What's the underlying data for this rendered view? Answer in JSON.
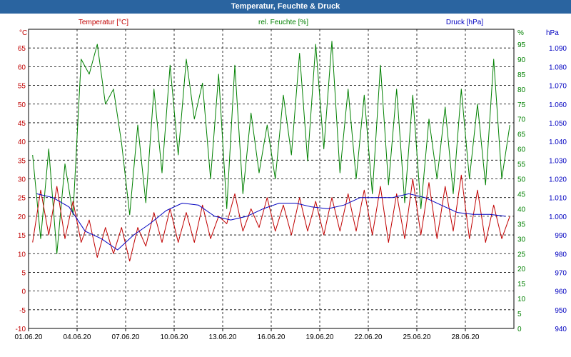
{
  "window": {
    "title": "Temperatur, Feuchte & Druck"
  },
  "colors": {
    "temperature": "#c00000",
    "humidity": "#008000",
    "pressure": "#0000c0",
    "grid": "#000000",
    "title_bar": "#2a64a0"
  },
  "chart_data": {
    "type": "line",
    "title": "Temperatur, Feuchte & Druck",
    "grid": true,
    "x_axis": {
      "start": "2020-06-01",
      "end": "2020-06-30",
      "tick_labels": [
        "01.06.20",
        "04.06.20",
        "07.06.20",
        "10.06.20",
        "13.06.20",
        "16.06.20",
        "19.06.20",
        "22.06.20",
        "25.06.20",
        "28.06.20"
      ]
    },
    "axes": {
      "temperature": {
        "label": "Temperatur [°C]",
        "unit": "°C",
        "ylim": [
          -10,
          70
        ],
        "ticks": [
          70,
          65,
          60,
          55,
          50,
          45,
          40,
          35,
          30,
          25,
          20,
          15,
          10,
          5,
          0,
          -5,
          -10
        ],
        "tick_labels": [
          "",
          "65",
          "60",
          "55",
          "50",
          "45",
          "40",
          "35",
          "30",
          "25",
          "20",
          "15",
          "10",
          "5",
          "0",
          "-5",
          "-10"
        ],
        "unit_label": "°C"
      },
      "humidity": {
        "label": "rel. Feuchte [%]",
        "unit": "%",
        "ylim": [
          0,
          100
        ],
        "ticks": [
          100,
          95,
          90,
          85,
          80,
          75,
          70,
          65,
          60,
          55,
          50,
          45,
          40,
          35,
          30,
          25,
          20,
          15,
          10,
          5,
          0
        ],
        "tick_labels": [
          "",
          "95",
          "90",
          "85",
          "80",
          "75",
          "70",
          "65",
          "60",
          "55",
          "50",
          "45",
          "40",
          "35",
          "30",
          "25",
          "20",
          "15",
          "10",
          "5",
          "0"
        ],
        "unit_label": "%"
      },
      "pressure": {
        "label": "Druck [hPa]",
        "unit": "hPa",
        "ylim": [
          940,
          1100
        ],
        "ticks": [
          1100,
          1090,
          1080,
          1070,
          1060,
          1050,
          1040,
          1030,
          1020,
          1010,
          1000,
          990,
          980,
          970,
          960,
          950,
          940
        ],
        "tick_labels": [
          "",
          "1.090",
          "1.080",
          "1.070",
          "1.060",
          "1.050",
          "1.040",
          "1.030",
          "1.020",
          "1.010",
          "1.000",
          "990",
          "980",
          "970",
          "960",
          "950",
          "940"
        ],
        "unit_label": "hPa"
      }
    },
    "series": [
      {
        "name": "Temperatur [°C]",
        "axis": "temperature",
        "x": [
          "2020-06-01",
          "2020-06-01",
          "2020-06-02",
          "2020-06-02",
          "2020-06-03",
          "2020-06-03",
          "2020-06-04",
          "2020-06-04",
          "2020-06-05",
          "2020-06-05",
          "2020-06-06",
          "2020-06-06",
          "2020-06-07",
          "2020-06-07",
          "2020-06-08",
          "2020-06-08",
          "2020-06-09",
          "2020-06-09",
          "2020-06-10",
          "2020-06-10",
          "2020-06-11",
          "2020-06-11",
          "2020-06-12",
          "2020-06-12",
          "2020-06-13",
          "2020-06-13",
          "2020-06-14",
          "2020-06-14",
          "2020-06-15",
          "2020-06-15",
          "2020-06-16",
          "2020-06-16",
          "2020-06-17",
          "2020-06-17",
          "2020-06-18",
          "2020-06-18",
          "2020-06-19",
          "2020-06-19",
          "2020-06-20",
          "2020-06-20",
          "2020-06-21",
          "2020-06-21",
          "2020-06-22",
          "2020-06-22",
          "2020-06-23",
          "2020-06-23",
          "2020-06-24",
          "2020-06-24",
          "2020-06-25",
          "2020-06-25",
          "2020-06-26",
          "2020-06-26",
          "2020-06-27",
          "2020-06-27",
          "2020-06-28",
          "2020-06-28",
          "2020-06-29",
          "2020-06-29",
          "2020-06-30",
          "2020-06-30"
        ],
        "y": [
          13,
          27,
          15,
          28,
          14,
          24,
          13,
          19,
          9,
          17,
          10,
          17,
          8,
          17,
          12,
          21,
          13,
          22,
          13,
          21,
          13,
          23,
          14,
          20,
          18,
          26,
          16,
          22,
          17,
          25,
          16,
          23,
          15,
          25,
          16,
          24,
          15,
          25,
          16,
          26,
          16,
          27,
          15,
          28,
          13,
          26,
          14,
          30,
          15,
          29,
          14,
          28,
          16,
          31,
          14,
          27,
          13,
          23,
          14,
          20
        ]
      },
      {
        "name": "rel. Feuchte [%]",
        "axis": "humidity",
        "x": [
          "2020-06-01",
          "2020-06-01",
          "2020-06-02",
          "2020-06-02",
          "2020-06-03",
          "2020-06-03",
          "2020-06-04",
          "2020-06-04",
          "2020-06-05",
          "2020-06-05",
          "2020-06-06",
          "2020-06-06",
          "2020-06-07",
          "2020-06-07",
          "2020-06-08",
          "2020-06-08",
          "2020-06-09",
          "2020-06-09",
          "2020-06-10",
          "2020-06-10",
          "2020-06-11",
          "2020-06-11",
          "2020-06-12",
          "2020-06-12",
          "2020-06-13",
          "2020-06-13",
          "2020-06-14",
          "2020-06-14",
          "2020-06-15",
          "2020-06-15",
          "2020-06-16",
          "2020-06-16",
          "2020-06-17",
          "2020-06-17",
          "2020-06-18",
          "2020-06-18",
          "2020-06-19",
          "2020-06-19",
          "2020-06-20",
          "2020-06-20",
          "2020-06-21",
          "2020-06-21",
          "2020-06-22",
          "2020-06-22",
          "2020-06-23",
          "2020-06-23",
          "2020-06-24",
          "2020-06-24",
          "2020-06-25",
          "2020-06-25",
          "2020-06-26",
          "2020-06-26",
          "2020-06-27",
          "2020-06-27",
          "2020-06-28",
          "2020-06-28",
          "2020-06-29",
          "2020-06-29",
          "2020-06-30",
          "2020-06-30"
        ],
        "y": [
          58,
          30,
          60,
          25,
          55,
          38,
          90,
          85,
          95,
          75,
          80,
          62,
          38,
          68,
          42,
          80,
          52,
          88,
          58,
          90,
          70,
          82,
          50,
          85,
          40,
          88,
          45,
          72,
          52,
          68,
          50,
          78,
          58,
          92,
          56,
          95,
          60,
          96,
          52,
          80,
          50,
          78,
          45,
          88,
          48,
          80,
          42,
          78,
          40,
          70,
          50,
          74,
          45,
          80,
          50,
          75,
          48,
          90,
          50,
          68
        ]
      },
      {
        "name": "Druck [hPa]",
        "axis": "pressure",
        "x": [
          "2020-06-01",
          "2020-06-02",
          "2020-06-03",
          "2020-06-04",
          "2020-06-05",
          "2020-06-06",
          "2020-06-07",
          "2020-06-08",
          "2020-06-09",
          "2020-06-10",
          "2020-06-11",
          "2020-06-12",
          "2020-06-13",
          "2020-06-14",
          "2020-06-15",
          "2020-06-16",
          "2020-06-17",
          "2020-06-18",
          "2020-06-19",
          "2020-06-20",
          "2020-06-21",
          "2020-06-22",
          "2020-06-23",
          "2020-06-24",
          "2020-06-25",
          "2020-06-26",
          "2020-06-27",
          "2020-06-28",
          "2020-06-29",
          "2020-06-30"
        ],
        "y": [
          1012,
          1010,
          1005,
          992,
          988,
          982,
          990,
          996,
          1003,
          1007,
          1006,
          1000,
          998,
          1000,
          1004,
          1007,
          1007,
          1005,
          1004,
          1006,
          1010,
          1010,
          1010,
          1012,
          1010,
          1006,
          1002,
          1001,
          1001,
          1000
        ]
      }
    ]
  }
}
